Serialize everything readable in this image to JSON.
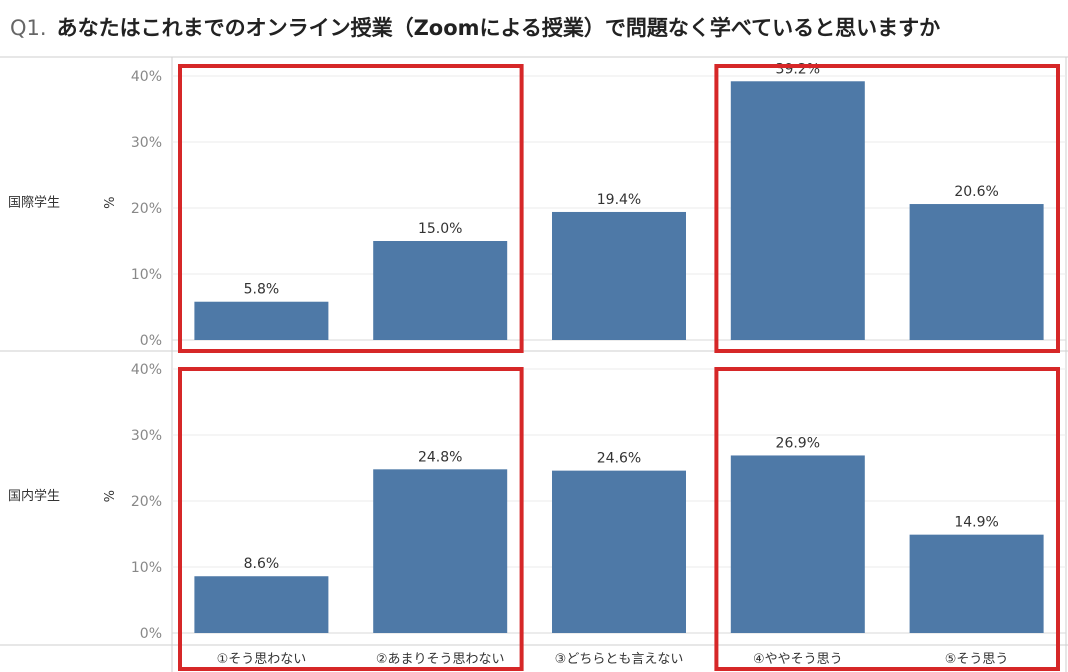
{
  "title": {
    "number": "Q1.",
    "text": "あなたはこれまでのオンライン授業（Zoomによる授業）で問題なく学べていると思いますか"
  },
  "colors": {
    "bar": "#4e79a7",
    "highlight_box": "#d62728",
    "grid": "#ebebeb",
    "axis_text": "#888888",
    "label_text": "#333333"
  },
  "chart_data": {
    "type": "bar",
    "categories": [
      "①そう思わない",
      "②あまりそう思わない",
      "③どちらとも言えない",
      "④ややそう思う",
      "⑤そう思う"
    ],
    "series": [
      {
        "name": "国際学生",
        "values": [
          5.8,
          15.0,
          19.4,
          39.2,
          20.6
        ],
        "value_labels": [
          "5.8%",
          "15.0%",
          "19.4%",
          "39.2%",
          "20.6%"
        ]
      },
      {
        "name": "国内学生",
        "values": [
          8.6,
          24.8,
          24.6,
          26.9,
          14.9
        ],
        "value_labels": [
          "8.6%",
          "24.8%",
          "24.6%",
          "26.9%",
          "14.9%"
        ]
      }
    ],
    "ylabel": "%",
    "ylim": [
      0,
      40
    ],
    "yticks": [
      0,
      10,
      20,
      30,
      40
    ],
    "ytick_labels": [
      "0%",
      "10%",
      "20%",
      "30%",
      "40%"
    ],
    "grid": true,
    "layout": "two panels stacked vertically, shared category axis",
    "highlight_boxes": "red outlines around categories ①–② and ④–⑤ in each panel"
  }
}
